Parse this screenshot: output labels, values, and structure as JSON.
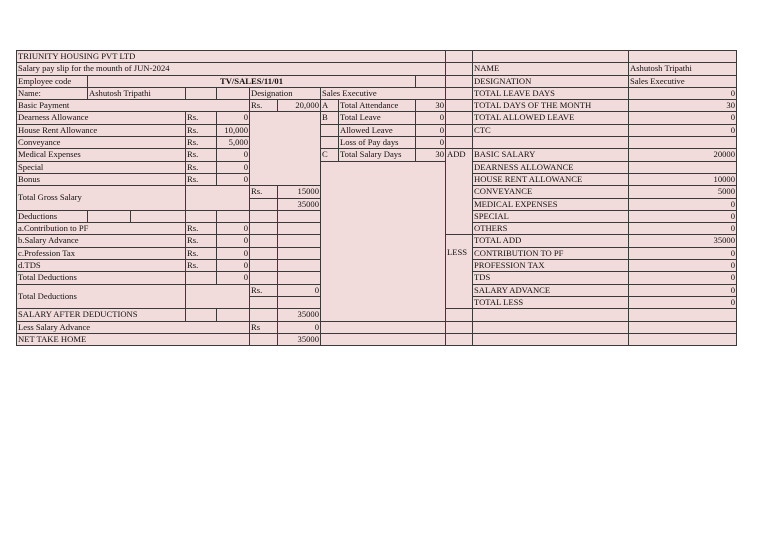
{
  "company": "TRIUNITY HOUSING PVT LTD",
  "slip_title": "Salary pay slip for the mounth of JUN-2024",
  "employee_code_label": "Employee code",
  "employee_code": "TV/SALES/11/01",
  "name_label": "Name:",
  "name": "Ashutosh Tripathi",
  "designation_label": "Designation",
  "designation": "Sales Executive",
  "currency": "Rs.",
  "currency_short": "Rs",
  "earnings": {
    "basic": {
      "label": "Basic Payment",
      "value": "20,000"
    },
    "items": [
      {
        "label": "Dearness Allowance",
        "value": "0"
      },
      {
        "label": "House Rent Allowance",
        "value": "10,000"
      },
      {
        "label": "Conveyance",
        "value": "5,000"
      },
      {
        "label": "Medical Expenses",
        "value": "0"
      },
      {
        "label": "Special",
        "value": "0"
      },
      {
        "label": "Bonus",
        "value": "0"
      }
    ],
    "gross_label": "Total Gross Salary",
    "gross_allowances": "15000",
    "gross_total": "35000"
  },
  "attendance": [
    {
      "key": "A",
      "label": "Total Attendance",
      "value": "30"
    },
    {
      "key": "B",
      "label": "Total Leave",
      "value": "0"
    },
    {
      "key": "",
      "label": "Allowed Leave",
      "value": "0"
    },
    {
      "key": "",
      "label": "Loss of Pay days",
      "value": "0"
    },
    {
      "key": "C",
      "label": "Total Salary Days",
      "value": "30"
    }
  ],
  "deductions": {
    "label": "Deductions",
    "items": [
      {
        "label": "a.Contribution to PF",
        "value": "0"
      },
      {
        "label": "b.Salary Advance",
        "value": "0"
      },
      {
        "label": "c.Profession Tax",
        "value": "0"
      },
      {
        "label": "d.TDS",
        "value": "0"
      }
    ],
    "total_label": "Total Deductions",
    "total": "0",
    "total2_label": "Total Deductions",
    "total2": "0"
  },
  "after_deductions": {
    "label": "SALARY AFTER DEDUCTIONS",
    "value": "35000"
  },
  "less_advance": {
    "label": "Less Salary Advance",
    "value": "0"
  },
  "net": {
    "label": "NET TAKE HOME",
    "value": "35000"
  },
  "summary": {
    "info": [
      {
        "label": "NAME",
        "value": "Ashutosh Tripathi"
      },
      {
        "label": "DESIGNATION",
        "value": "Sales Executive"
      },
      {
        "label": "TOTAL LEAVE DAYS",
        "value": "0"
      },
      {
        "label": "TOTAL DAYS OF THE MONTH",
        "value": "30"
      },
      {
        "label": "TOTAL ALLOWED LEAVE",
        "value": "0"
      },
      {
        "label": "CTC",
        "value": "0"
      }
    ],
    "add_label": "ADD",
    "add": [
      {
        "label": "BASIC SALARY",
        "value": "20000"
      },
      {
        "label": "DEARNESS ALLOWANCE",
        "value": ""
      },
      {
        "label": "HOUSE RENT ALLOWANCE",
        "value": "10000"
      },
      {
        "label": "CONVEYANCE",
        "value": "5000"
      },
      {
        "label": "MEDICAL EXPENSES",
        "value": "0"
      },
      {
        "label": "SPECIAL",
        "value": "0"
      },
      {
        "label": "OTHERS",
        "value": "0"
      }
    ],
    "total_add": {
      "label": "TOTAL ADD",
      "value": "35000"
    },
    "less_label": "LESS",
    "less": [
      {
        "label": "CONTRIBUTION TO PF",
        "value": "0"
      },
      {
        "label": "PROFESSION TAX",
        "value": "0"
      },
      {
        "label": "TDS",
        "value": "0"
      },
      {
        "label": "SALARY ADVANCE",
        "value": "0"
      }
    ],
    "total_less": {
      "label": "TOTAL LESS",
      "value": "0"
    }
  },
  "colors": {
    "cell_background": "#f2dcdb",
    "border": "#3a3a3a"
  }
}
